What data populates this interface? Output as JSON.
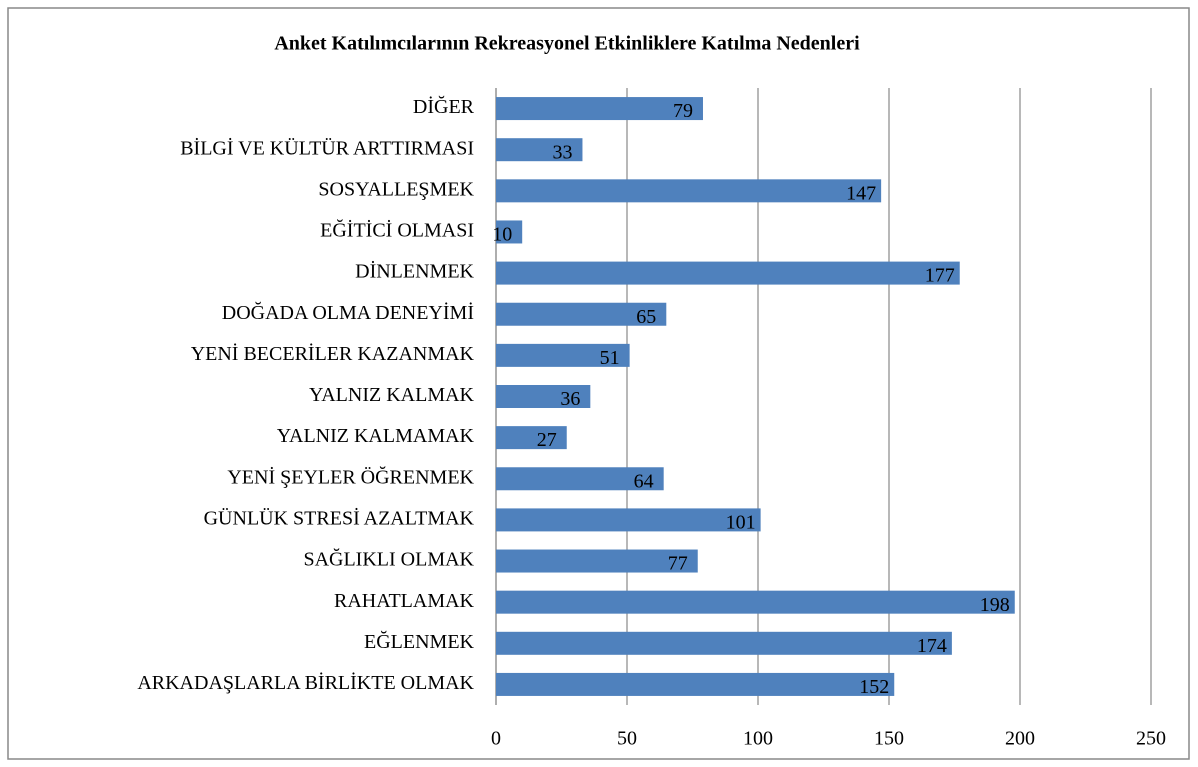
{
  "chart_data": {
    "type": "bar",
    "orientation": "horizontal",
    "title": "Anket Katılımcılarının Rekreasyonel Etkinliklere Katılma Nedenleri",
    "categories": [
      "DİĞER",
      "BİLGİ VE KÜLTÜR ARTTIRMASI",
      "SOSYALLEŞMEK",
      "EĞİTİCİ OLMASI",
      "DİNLENMEK",
      "DOĞADA OLMA DENEYİMİ",
      "YENİ BECERİLER KAZANMAK",
      "YALNIZ KALMAK",
      "YALNIZ KALMAMAK",
      "YENİ ŞEYLER ÖĞRENMEK",
      "GÜNLÜK STRESİ AZALTMAK",
      "SAĞLIKLI OLMAK",
      "RAHATLAMAK",
      "EĞLENMEK",
      "ARKADAŞLARLA BİRLİKTE OLMAK"
    ],
    "values": [
      79,
      33,
      147,
      10,
      177,
      65,
      51,
      36,
      27,
      64,
      101,
      77,
      198,
      174,
      152
    ],
    "color": "#4f81bd",
    "xlim": [
      0,
      250
    ],
    "xticks": [
      0,
      50,
      100,
      150,
      200,
      250
    ],
    "grid": true
  }
}
